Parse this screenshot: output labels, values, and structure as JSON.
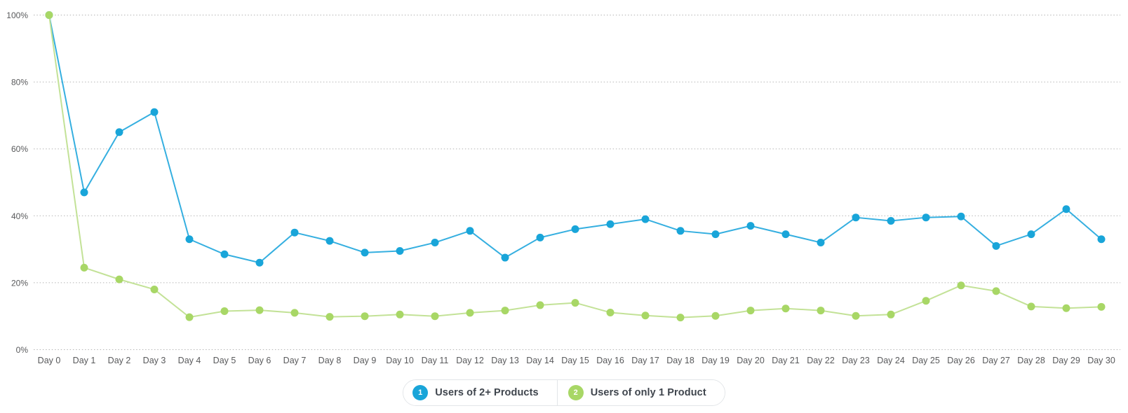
{
  "colors": {
    "background": "#ffffff",
    "grid": "#b5b5b5",
    "axis_label": "#58595b",
    "legend_border": "#e2e5e8",
    "legend_text": "#3f454d",
    "series1_line": "#35afe0",
    "series1_marker": "#19a5d9",
    "series2_line": "#c3e297",
    "series2_marker": "#a8d766"
  },
  "chart_data": {
    "type": "line",
    "title": "",
    "xlabel": "",
    "ylabel": "",
    "ylim": [
      0,
      100
    ],
    "grid": "dotted-horizontal",
    "legend_position": "bottom-center",
    "y_ticks": [
      0,
      20,
      40,
      60,
      80,
      100
    ],
    "y_tick_labels": [
      "0%",
      "20%",
      "40%",
      "60%",
      "80%",
      "100%"
    ],
    "x": [
      "Day 0",
      "Day 1",
      "Day 2",
      "Day 3",
      "Day 4",
      "Day 5",
      "Day 6",
      "Day 7",
      "Day 8",
      "Day 9",
      "Day 10",
      "Day 11",
      "Day 12",
      "Day 13",
      "Day 14",
      "Day 15",
      "Day 16",
      "Day 17",
      "Day 18",
      "Day 19",
      "Day 20",
      "Day 21",
      "Day 22",
      "Day 23",
      "Day 24",
      "Day 25",
      "Day 26",
      "Day 27",
      "Day 28",
      "Day 29",
      "Day 30"
    ],
    "series": [
      {
        "name": "Users of 2+ Products",
        "line_color": "#35afe0",
        "marker_color": "#19a5d9",
        "values": [
          100,
          47,
          65,
          71,
          33,
          28.5,
          26,
          35,
          32.5,
          29,
          29.5,
          32,
          35.5,
          27.5,
          33.5,
          36,
          37.5,
          39,
          35.5,
          34.5,
          37,
          34.5,
          32,
          39.5,
          38.5,
          39.5,
          39.8,
          31,
          34.5,
          42,
          33
        ]
      },
      {
        "name": "Users of only 1 Product",
        "line_color": "#c3e297",
        "marker_color": "#a8d766",
        "values": [
          100,
          24.5,
          21,
          18,
          9.7,
          11.5,
          11.8,
          11,
          9.8,
          10,
          10.5,
          10,
          11,
          11.7,
          13.3,
          14,
          11.1,
          10.2,
          9.6,
          10.1,
          11.7,
          12.3,
          11.7,
          10.1,
          10.5,
          14.6,
          19.2,
          17.5,
          12.9,
          12.4,
          12.8
        ]
      }
    ]
  },
  "legend": {
    "items": [
      {
        "badge": "1",
        "label": "Users of 2+ Products",
        "color": "#19a5d9"
      },
      {
        "badge": "2",
        "label": "Users of only 1 Product",
        "color": "#a8d766"
      }
    ]
  }
}
